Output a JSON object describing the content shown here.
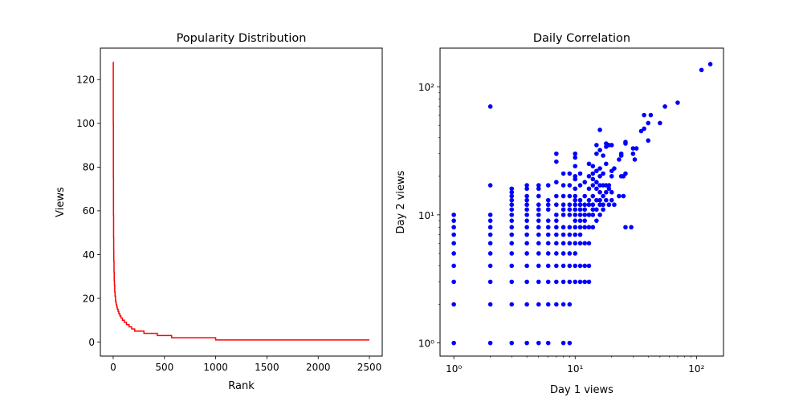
{
  "chart_data": [
    {
      "type": "line",
      "title": "Popularity Distribution",
      "xlabel": "Rank",
      "ylabel": "Views",
      "xlim": [
        -125,
        2625
      ],
      "ylim": [
        -6.4,
        134.4
      ],
      "xticks": [
        0,
        500,
        1000,
        1500,
        2000,
        2500
      ],
      "xtick_labels": [
        "0",
        "500",
        "1000",
        "1500",
        "2000",
        "2500"
      ],
      "yticks": [
        0,
        20,
        40,
        60,
        80,
        100,
        120
      ],
      "ytick_labels": [
        "0",
        "20",
        "40",
        "60",
        "80",
        "100",
        "120"
      ],
      "grid": false,
      "color": "#ff0000",
      "series": [
        {
          "x": [
            0,
            1,
            2,
            3,
            4,
            5,
            6,
            8,
            10,
            12,
            15,
            18,
            22,
            26,
            30,
            35,
            40,
            48,
            55,
            65,
            75,
            90,
            110,
            130,
            155,
            180,
            210,
            250,
            300,
            380,
            430,
            570,
            1000,
            2500
          ],
          "y": [
            128,
            100,
            75,
            58,
            48,
            42,
            37,
            32,
            28,
            26,
            23,
            21,
            19,
            18,
            17,
            16,
            15,
            14,
            13,
            12,
            11,
            10,
            9,
            8,
            7,
            6,
            5,
            5,
            4,
            4,
            3,
            2,
            1,
            1
          ]
        }
      ]
    },
    {
      "type": "scatter",
      "title": "Daily Correlation",
      "xlabel": "Day 1 views",
      "ylabel": "Day 2 views",
      "xscale": "log",
      "yscale": "log",
      "xlim": [
        0.77,
        167
      ],
      "ylim": [
        0.79,
        200
      ],
      "xticks": [
        1,
        10,
        100
      ],
      "xtick_labels": [
        "10⁰",
        "10¹",
        "10²"
      ],
      "yticks": [
        1,
        10,
        100
      ],
      "ytick_labels": [
        "10⁰",
        "10¹",
        "10²"
      ],
      "grid": false,
      "color": "#0000ff",
      "points": [
        [
          1,
          1
        ],
        [
          1,
          2
        ],
        [
          1,
          3
        ],
        [
          1,
          4
        ],
        [
          1,
          5
        ],
        [
          1,
          6
        ],
        [
          1,
          7
        ],
        [
          1,
          8
        ],
        [
          1,
          9
        ],
        [
          1,
          10
        ],
        [
          2,
          1
        ],
        [
          2,
          2
        ],
        [
          2,
          3
        ],
        [
          2,
          4
        ],
        [
          2,
          5
        ],
        [
          2,
          6
        ],
        [
          2,
          7
        ],
        [
          2,
          8
        ],
        [
          2,
          9
        ],
        [
          2,
          10
        ],
        [
          2,
          17
        ],
        [
          2,
          70
        ],
        [
          3,
          1
        ],
        [
          3,
          2
        ],
        [
          3,
          3
        ],
        [
          3,
          4
        ],
        [
          3,
          5
        ],
        [
          3,
          6
        ],
        [
          3,
          7
        ],
        [
          3,
          8
        ],
        [
          3,
          9
        ],
        [
          3,
          10
        ],
        [
          3,
          11
        ],
        [
          3,
          12
        ],
        [
          3,
          13
        ],
        [
          3,
          14
        ],
        [
          3,
          15
        ],
        [
          3,
          16
        ],
        [
          4,
          1
        ],
        [
          4,
          2
        ],
        [
          4,
          3
        ],
        [
          4,
          4
        ],
        [
          4,
          5
        ],
        [
          4,
          6
        ],
        [
          4,
          7
        ],
        [
          4,
          8
        ],
        [
          4,
          9
        ],
        [
          4,
          10
        ],
        [
          4,
          11
        ],
        [
          4,
          12
        ],
        [
          4,
          13
        ],
        [
          4,
          14
        ],
        [
          4,
          16
        ],
        [
          4,
          17
        ],
        [
          5,
          1
        ],
        [
          5,
          2
        ],
        [
          5,
          3
        ],
        [
          5,
          4
        ],
        [
          5,
          5
        ],
        [
          5,
          6
        ],
        [
          5,
          7
        ],
        [
          5,
          8
        ],
        [
          5,
          9
        ],
        [
          5,
          10
        ],
        [
          5,
          11
        ],
        [
          5,
          12
        ],
        [
          5,
          14
        ],
        [
          5,
          16
        ],
        [
          5,
          17
        ],
        [
          6,
          1
        ],
        [
          6,
          2
        ],
        [
          6,
          3
        ],
        [
          6,
          4
        ],
        [
          6,
          5
        ],
        [
          6,
          6
        ],
        [
          6,
          7
        ],
        [
          6,
          8
        ],
        [
          6,
          9
        ],
        [
          6,
          11
        ],
        [
          6,
          12
        ],
        [
          6,
          13
        ],
        [
          6,
          17
        ],
        [
          7,
          2
        ],
        [
          7,
          3
        ],
        [
          7,
          4
        ],
        [
          7,
          5
        ],
        [
          7,
          6
        ],
        [
          7,
          7
        ],
        [
          7,
          8
        ],
        [
          7,
          9
        ],
        [
          7,
          10
        ],
        [
          7,
          12
        ],
        [
          7,
          14
        ],
        [
          7,
          18
        ],
        [
          7,
          26
        ],
        [
          7,
          30
        ],
        [
          8,
          1
        ],
        [
          8,
          2
        ],
        [
          8,
          3
        ],
        [
          8,
          4
        ],
        [
          8,
          5
        ],
        [
          8,
          6
        ],
        [
          8,
          7
        ],
        [
          8,
          8
        ],
        [
          8,
          10
        ],
        [
          8,
          11
        ],
        [
          8,
          12
        ],
        [
          8,
          14
        ],
        [
          8,
          17
        ],
        [
          8,
          21
        ],
        [
          9,
          1
        ],
        [
          9,
          2
        ],
        [
          9,
          3
        ],
        [
          9,
          4
        ],
        [
          9,
          5
        ],
        [
          9,
          6
        ],
        [
          9,
          7
        ],
        [
          9,
          8
        ],
        [
          9,
          10
        ],
        [
          9,
          11
        ],
        [
          9,
          12
        ],
        [
          9,
          14
        ],
        [
          9,
          17
        ],
        [
          9,
          21
        ],
        [
          10,
          3
        ],
        [
          10,
          4
        ],
        [
          10,
          5
        ],
        [
          10,
          6
        ],
        [
          10,
          7
        ],
        [
          10,
          8
        ],
        [
          10,
          9
        ],
        [
          10,
          10
        ],
        [
          10,
          11
        ],
        [
          10,
          12
        ],
        [
          10,
          13
        ],
        [
          10,
          14
        ],
        [
          10,
          16
        ],
        [
          10,
          19
        ],
        [
          10,
          20
        ],
        [
          10,
          24
        ],
        [
          10,
          28
        ],
        [
          10,
          30
        ],
        [
          11,
          3
        ],
        [
          11,
          4
        ],
        [
          11,
          6
        ],
        [
          11,
          7
        ],
        [
          11,
          8
        ],
        [
          11,
          9
        ],
        [
          11,
          10
        ],
        [
          11,
          11
        ],
        [
          11,
          12
        ],
        [
          11,
          13
        ],
        [
          11,
          17
        ],
        [
          11,
          21
        ],
        [
          12,
          3
        ],
        [
          12,
          4
        ],
        [
          12,
          6
        ],
        [
          12,
          8
        ],
        [
          12,
          9
        ],
        [
          12,
          10
        ],
        [
          12,
          11
        ],
        [
          12,
          12
        ],
        [
          12,
          14
        ],
        [
          12,
          18
        ],
        [
          13,
          3
        ],
        [
          13,
          4
        ],
        [
          13,
          6
        ],
        [
          13,
          8
        ],
        [
          13,
          10
        ],
        [
          13,
          12
        ],
        [
          13,
          13
        ],
        [
          13,
          16
        ],
        [
          13,
          20
        ],
        [
          13,
          25
        ],
        [
          14,
          8
        ],
        [
          14,
          10
        ],
        [
          14,
          11
        ],
        [
          14,
          12
        ],
        [
          14,
          14
        ],
        [
          14,
          17
        ],
        [
          14,
          19
        ],
        [
          14,
          21
        ],
        [
          14,
          24
        ],
        [
          15,
          9
        ],
        [
          15,
          11
        ],
        [
          15,
          13
        ],
        [
          15,
          16
        ],
        [
          15,
          18
        ],
        [
          15,
          22
        ],
        [
          15,
          30
        ],
        [
          15,
          35
        ],
        [
          16,
          10
        ],
        [
          16,
          12
        ],
        [
          16,
          13
        ],
        [
          16,
          15
        ],
        [
          16,
          17
        ],
        [
          16,
          20
        ],
        [
          16,
          23
        ],
        [
          16,
          32
        ],
        [
          16,
          46
        ],
        [
          17,
          11
        ],
        [
          17,
          12
        ],
        [
          17,
          14
        ],
        [
          17,
          17
        ],
        [
          17,
          21
        ],
        [
          17,
          29
        ],
        [
          18,
          13
        ],
        [
          18,
          15
        ],
        [
          18,
          17
        ],
        [
          18,
          25
        ],
        [
          18,
          34
        ],
        [
          18,
          36
        ],
        [
          19,
          12
        ],
        [
          19,
          16
        ],
        [
          19,
          17
        ],
        [
          19,
          35
        ],
        [
          20,
          13
        ],
        [
          20,
          15
        ],
        [
          20,
          20
        ],
        [
          20,
          22
        ],
        [
          20,
          35
        ],
        [
          21,
          12
        ],
        [
          21,
          23
        ],
        [
          23,
          14
        ],
        [
          23,
          27
        ],
        [
          24,
          20
        ],
        [
          24,
          29
        ],
        [
          24,
          30
        ],
        [
          25,
          14
        ],
        [
          25,
          20
        ],
        [
          26,
          8
        ],
        [
          26,
          21
        ],
        [
          26,
          36
        ],
        [
          26,
          37
        ],
        [
          29,
          8
        ],
        [
          30,
          30
        ],
        [
          30,
          33
        ],
        [
          31,
          27
        ],
        [
          32,
          33
        ],
        [
          35,
          45
        ],
        [
          37,
          47
        ],
        [
          37,
          60
        ],
        [
          40,
          52
        ],
        [
          40,
          38
        ],
        [
          42,
          60
        ],
        [
          50,
          52
        ],
        [
          55,
          70
        ],
        [
          70,
          75
        ],
        [
          110,
          135
        ],
        [
          130,
          150
        ]
      ]
    }
  ]
}
